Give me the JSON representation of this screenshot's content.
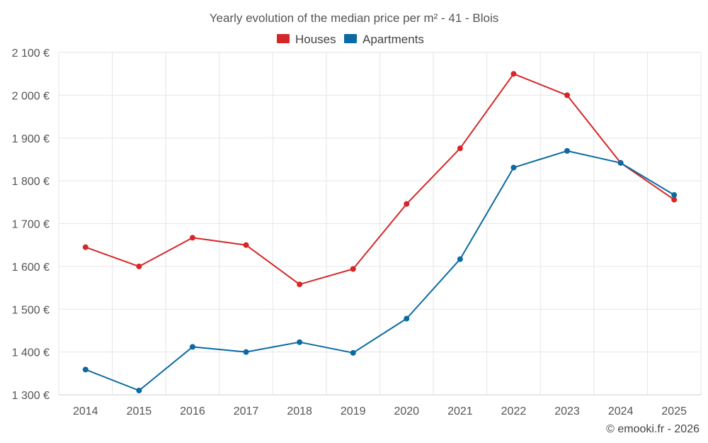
{
  "chart_data": {
    "type": "line",
    "title": "Yearly evolution of the median price per m² - 41 - Blois",
    "categories": [
      "2014",
      "2015",
      "2016",
      "2017",
      "2018",
      "2019",
      "2020",
      "2021",
      "2022",
      "2023",
      "2024",
      "2025"
    ],
    "series": [
      {
        "name": "Houses",
        "color": "#d62728",
        "values": [
          1645,
          1600,
          1667,
          1650,
          1558,
          1594,
          1746,
          1876,
          2050,
          2000,
          1842,
          1756
        ]
      },
      {
        "name": "Apartments",
        "color": "#0b6aa2",
        "values": [
          1359,
          1310,
          1412,
          1400,
          1423,
          1398,
          1478,
          1617,
          1831,
          1870,
          1842,
          1767
        ]
      }
    ],
    "ylim": [
      1300,
      2100
    ],
    "yticks": [
      1300,
      1400,
      1500,
      1600,
      1700,
      1800,
      1900,
      2000,
      2100
    ],
    "ytick_labels": [
      "1 300 €",
      "1 400 €",
      "1 500 €",
      "1 600 €",
      "1 700 €",
      "1 800 €",
      "1 900 €",
      "2 000 €",
      "2 100 €"
    ],
    "xlabel": "",
    "ylabel": "",
    "grid": true,
    "legend_position": "top-center"
  },
  "credit": "© emooki.fr - 2026"
}
